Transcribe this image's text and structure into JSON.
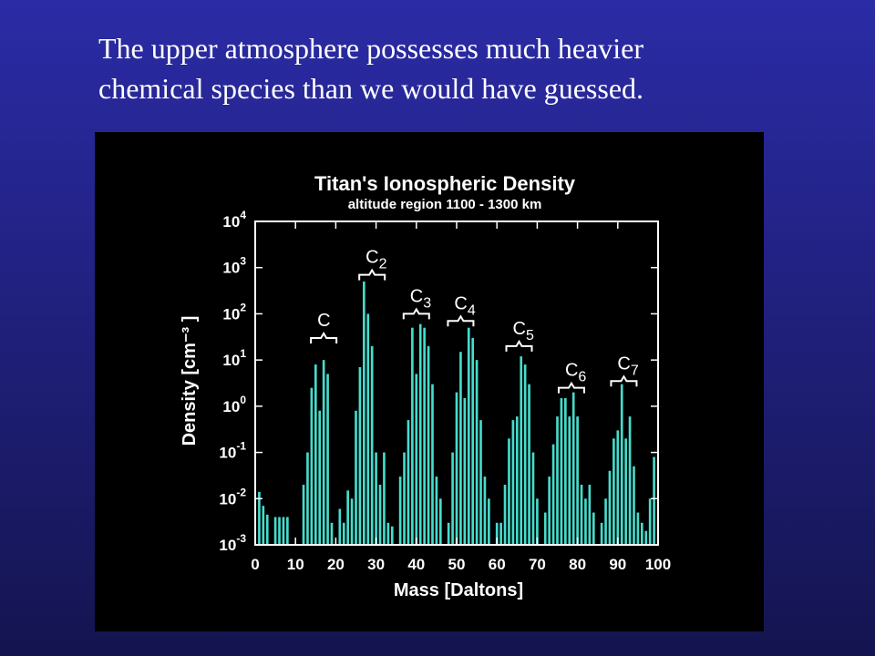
{
  "slide_text": [
    "The upper atmosphere possesses much heavier",
    "chemical species than we would have guessed."
  ],
  "chart_data": {
    "type": "bar",
    "title": "Titan's Ionospheric Density",
    "subtitle": "altitude region 1100 - 1300 km",
    "xlabel": "Mass [Daltons]",
    "ylabel": "Density [cm⁻³ ]",
    "color": "#45dccc",
    "log_y": true,
    "grid": false,
    "x": [
      1,
      2,
      3,
      4,
      5,
      6,
      7,
      8,
      9,
      10,
      11,
      12,
      13,
      14,
      15,
      16,
      17,
      18,
      19,
      20,
      21,
      22,
      23,
      24,
      25,
      26,
      27,
      28,
      29,
      30,
      31,
      32,
      33,
      34,
      35,
      36,
      37,
      38,
      39,
      40,
      41,
      42,
      43,
      44,
      45,
      46,
      47,
      48,
      49,
      50,
      51,
      52,
      53,
      54,
      55,
      56,
      57,
      58,
      59,
      60,
      61,
      62,
      63,
      64,
      65,
      66,
      67,
      68,
      69,
      70,
      71,
      72,
      73,
      74,
      75,
      76,
      77,
      78,
      79,
      80,
      81,
      82,
      83,
      84,
      85,
      86,
      87,
      88,
      89,
      90,
      91,
      92,
      93,
      94,
      95,
      96,
      97,
      98,
      99,
      100
    ],
    "values": [
      0.014,
      0.007,
      0.0045,
      null,
      0.004,
      0.004,
      0.004,
      0.004,
      null,
      null,
      null,
      0.02,
      0.1,
      2.5,
      8,
      0.8,
      10,
      5,
      0.003,
      null,
      0.006,
      0.003,
      0.015,
      0.01,
      0.8,
      7,
      500,
      100,
      20,
      0.1,
      0.02,
      0.1,
      0.003,
      0.0025,
      null,
      0.03,
      0.1,
      0.5,
      50,
      5,
      60,
      50,
      20,
      3,
      0.03,
      0.01,
      null,
      0.003,
      0.1,
      2,
      15,
      1.5,
      50,
      30,
      10,
      0.5,
      0.03,
      0.01,
      null,
      0.003,
      0.003,
      0.02,
      0.2,
      0.5,
      0.6,
      12,
      8,
      3,
      0.1,
      0.01,
      null,
      0.005,
      0.03,
      0.15,
      0.6,
      1.5,
      1.5,
      0.6,
      2,
      0.6,
      0.02,
      0.01,
      0.02,
      0.005,
      null,
      0.003,
      0.01,
      0.04,
      0.2,
      0.3,
      3,
      0.2,
      0.6,
      0.05,
      0.005,
      0.003,
      0.002,
      0.01,
      0.08,
      null
    ],
    "xlim": [
      0,
      100
    ],
    "xticks": [
      0,
      10,
      20,
      30,
      40,
      50,
      60,
      70,
      80,
      90,
      100
    ],
    "ylim": [
      0.001,
      10000
    ],
    "yticks": [
      {
        "value": 0.001,
        "label": "10",
        "exponent": "-3"
      },
      {
        "value": 0.01,
        "label": "10",
        "exponent": "-2"
      },
      {
        "value": 0.1,
        "label": "10",
        "exponent": "-1"
      },
      {
        "value": 1,
        "label": "10",
        "exponent": "0"
      },
      {
        "value": 10,
        "label": "10",
        "exponent": "1"
      },
      {
        "value": 100,
        "label": "10",
        "exponent": "2"
      },
      {
        "value": 1000,
        "label": "10",
        "exponent": "3"
      },
      {
        "value": 10000,
        "label": "10",
        "exponent": "4"
      }
    ],
    "annotations": [
      {
        "text": "C",
        "sub": "",
        "x": 17,
        "y": 30
      },
      {
        "text": "C",
        "sub": "2",
        "x": 29,
        "y": 700
      },
      {
        "text": "C",
        "sub": "3",
        "x": 40,
        "y": 100
      },
      {
        "text": "C",
        "sub": "4",
        "x": 51,
        "y": 70
      },
      {
        "text": "C",
        "sub": "5",
        "x": 65.5,
        "y": 20
      },
      {
        "text": "C",
        "sub": "6",
        "x": 78.5,
        "y": 2.5
      },
      {
        "text": "C",
        "sub": "7",
        "x": 91.5,
        "y": 3.5
      }
    ]
  }
}
